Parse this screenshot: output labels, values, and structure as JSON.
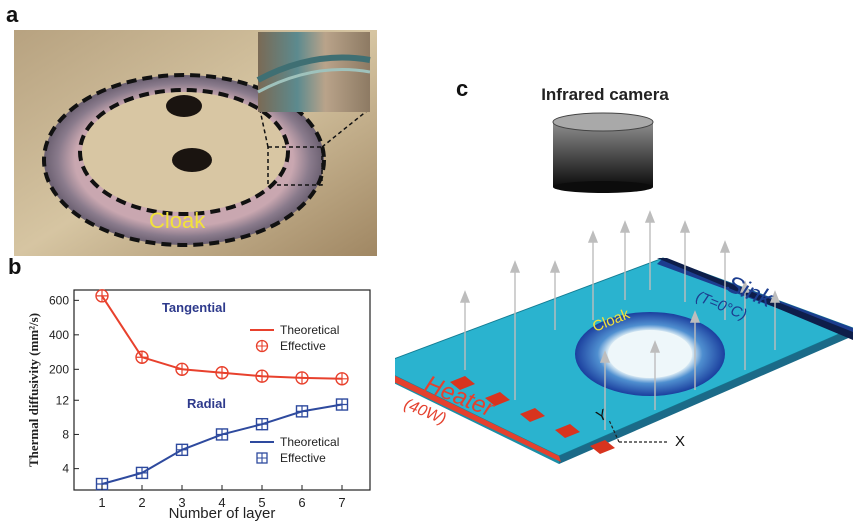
{
  "panel_labels": {
    "a": "a",
    "b": "b",
    "c": "c"
  },
  "photo": {
    "cloak_label": "Cloak"
  },
  "setup": {
    "camera_label": "Infrared camera",
    "sink_label": "Sink",
    "sink_temp": "(T=0°C)",
    "heater_label": "Heater",
    "heater_power": "(40W)",
    "cloak_label": "Cloak",
    "axis_x": "X",
    "axis_y": "Y"
  },
  "chart_data": {
    "type": "line",
    "xlabel": "Number of layer",
    "ylabel": "Thermal diffusivity (mm²/s)",
    "x": [
      1,
      2,
      3,
      4,
      5,
      6,
      7
    ],
    "upper": {
      "label": "Tangential",
      "yticks": [
        200,
        400,
        600
      ],
      "ylim": [
        80,
        660
      ],
      "series": [
        {
          "name": "Theoretical",
          "style": "line",
          "color": "#e8412d",
          "values": [
            626,
            270,
            200,
            180,
            160,
            150,
            145
          ]
        },
        {
          "name": "Effective",
          "style": "circle-plus",
          "color": "#e8412d",
          "values": [
            626,
            270,
            200,
            180,
            160,
            150,
            145
          ]
        }
      ],
      "legend": "right"
    },
    "lower": {
      "label": "Radial",
      "yticks": [
        4,
        8,
        12
      ],
      "ylim": [
        1.5,
        13.2
      ],
      "series": [
        {
          "name": "Theoretical",
          "style": "line",
          "color": "#2e4a9e",
          "values": [
            2.2,
            3.5,
            6.2,
            8.0,
            9.2,
            10.7,
            11.5
          ]
        },
        {
          "name": "Effective",
          "style": "square-plus",
          "color": "#2e4a9e",
          "values": [
            2.2,
            3.5,
            6.2,
            8.0,
            9.2,
            10.7,
            11.5
          ]
        }
      ],
      "legend": "lower-right"
    }
  }
}
